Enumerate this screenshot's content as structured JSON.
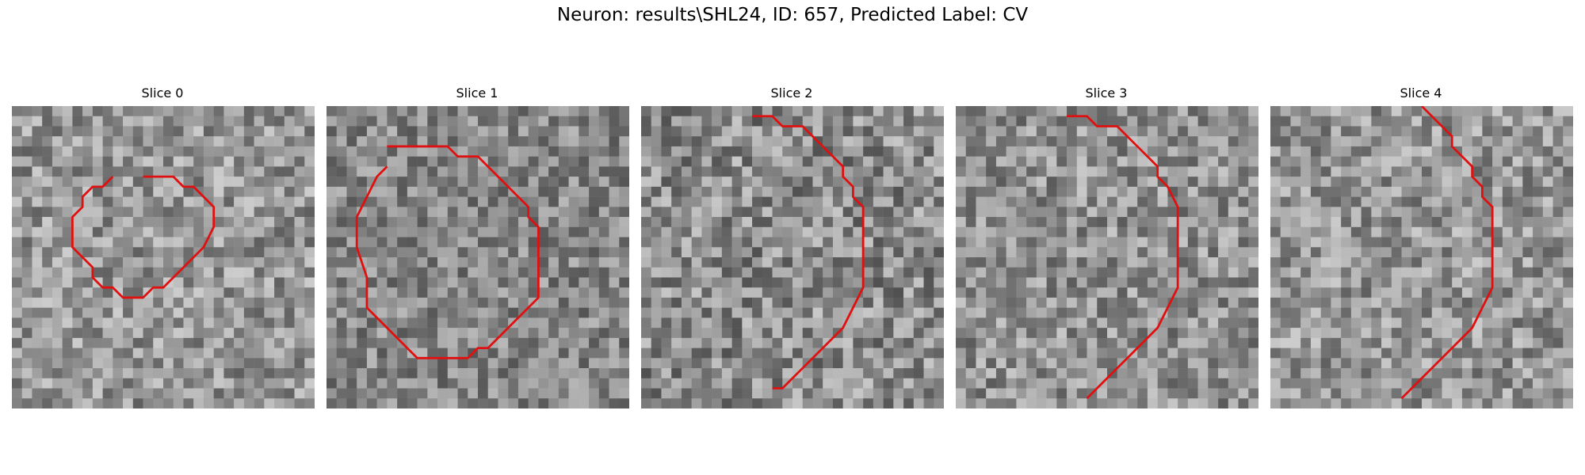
{
  "figure": {
    "title": "Neuron: results\\SHL24, ID: 657, Predicted Label: CV"
  },
  "style": {
    "contour_color": "#e01010"
  },
  "slices": [
    {
      "title": "Slice 0",
      "seed": 11,
      "mean": 150,
      "noise": 55,
      "contour": [
        [
          13,
          7
        ],
        [
          16,
          7
        ],
        [
          17,
          8
        ],
        [
          18,
          8
        ],
        [
          19,
          9
        ],
        [
          20,
          10
        ],
        [
          20,
          12
        ],
        [
          19,
          14
        ],
        [
          18,
          15
        ],
        [
          17,
          16
        ],
        [
          16,
          17
        ],
        [
          15,
          18
        ],
        [
          14,
          18
        ],
        [
          13,
          19
        ],
        [
          11,
          19
        ],
        [
          10,
          18
        ],
        [
          9,
          18
        ],
        [
          8,
          17
        ],
        [
          8,
          16
        ],
        [
          7,
          15
        ],
        [
          6,
          14
        ],
        [
          6,
          11
        ],
        [
          7,
          10
        ],
        [
          7,
          9
        ],
        [
          8,
          8
        ],
        [
          9,
          8
        ],
        [
          10,
          7
        ]
      ]
    },
    {
      "title": "Slice 1",
      "seed": 23,
      "mean": 135,
      "noise": 50,
      "contour": [
        [
          6,
          4
        ],
        [
          12,
          4
        ],
        [
          13,
          5
        ],
        [
          15,
          5
        ],
        [
          16,
          6
        ],
        [
          17,
          7
        ],
        [
          18,
          8
        ],
        [
          19,
          9
        ],
        [
          20,
          10
        ],
        [
          20,
          11
        ],
        [
          21,
          12
        ],
        [
          21,
          16
        ],
        [
          21,
          19
        ],
        [
          20,
          20
        ],
        [
          19,
          21
        ],
        [
          18,
          22
        ],
        [
          17,
          23
        ],
        [
          16,
          24
        ],
        [
          15,
          24
        ],
        [
          14,
          25
        ],
        [
          12,
          25
        ],
        [
          11,
          25
        ],
        [
          9,
          25
        ],
        [
          8,
          24
        ],
        [
          7,
          23
        ],
        [
          6,
          22
        ],
        [
          5,
          21
        ],
        [
          4,
          20
        ],
        [
          4,
          17
        ],
        [
          3,
          14
        ],
        [
          3,
          11
        ],
        [
          4,
          9
        ],
        [
          5,
          7
        ],
        [
          6,
          6
        ]
      ]
    },
    {
      "title": "Slice 2",
      "seed": 37,
      "mean": 140,
      "noise": 60,
      "contour": [
        [
          11,
          1
        ],
        [
          13,
          1
        ],
        [
          14,
          2
        ],
        [
          16,
          2
        ],
        [
          17,
          3
        ],
        [
          18,
          4
        ],
        [
          19,
          5
        ],
        [
          20,
          6
        ],
        [
          20,
          7
        ],
        [
          21,
          8
        ],
        [
          21,
          9
        ],
        [
          22,
          10
        ],
        [
          22,
          14
        ],
        [
          22,
          18
        ],
        [
          21,
          20
        ],
        [
          20,
          22
        ],
        [
          19,
          23
        ],
        [
          18,
          24
        ],
        [
          17,
          25
        ],
        [
          16,
          26
        ],
        [
          15,
          27
        ],
        [
          14,
          28
        ],
        [
          13,
          28
        ]
      ]
    },
    {
      "title": "Slice 3",
      "seed": 53,
      "mean": 145,
      "noise": 55,
      "contour": [
        [
          11,
          1
        ],
        [
          13,
          1
        ],
        [
          14,
          2
        ],
        [
          16,
          2
        ],
        [
          17,
          3
        ],
        [
          18,
          4
        ],
        [
          19,
          5
        ],
        [
          20,
          6
        ],
        [
          20,
          7
        ],
        [
          21,
          8
        ],
        [
          22,
          10
        ],
        [
          22,
          14
        ],
        [
          22,
          18
        ],
        [
          21,
          20
        ],
        [
          20,
          22
        ],
        [
          19,
          23
        ],
        [
          18,
          24
        ],
        [
          17,
          25
        ],
        [
          16,
          26
        ],
        [
          15,
          27
        ],
        [
          14,
          28
        ],
        [
          13,
          29
        ]
      ]
    },
    {
      "title": "Slice 4",
      "seed": 71,
      "mean": 150,
      "noise": 55,
      "contour": [
        [
          15,
          0
        ],
        [
          16,
          1
        ],
        [
          17,
          2
        ],
        [
          18,
          3
        ],
        [
          18,
          4
        ],
        [
          19,
          5
        ],
        [
          20,
          6
        ],
        [
          20,
          7
        ],
        [
          21,
          8
        ],
        [
          21,
          9
        ],
        [
          22,
          10
        ],
        [
          22,
          14
        ],
        [
          22,
          18
        ],
        [
          21,
          20
        ],
        [
          20,
          22
        ],
        [
          19,
          23
        ],
        [
          18,
          24
        ],
        [
          17,
          25
        ],
        [
          16,
          26
        ],
        [
          15,
          27
        ],
        [
          14,
          28
        ],
        [
          13,
          29
        ]
      ]
    }
  ]
}
